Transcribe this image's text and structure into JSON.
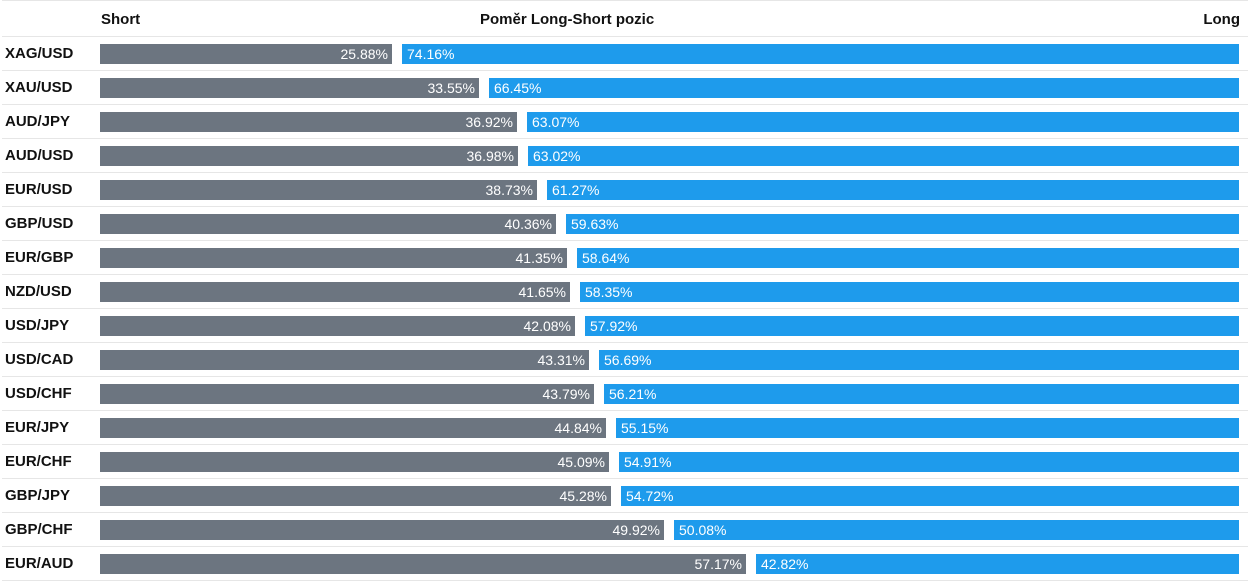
{
  "header": {
    "short_label": "Short",
    "title": "Poměr Long-Short pozic",
    "long_label": "Long"
  },
  "colors": {
    "short": "#6c7580",
    "long": "#1e9bec"
  },
  "chart_data": {
    "type": "bar",
    "title": "Poměr Long-Short pozic",
    "orientation": "horizontal-stacked",
    "categories": [
      "XAG/USD",
      "XAU/USD",
      "AUD/JPY",
      "AUD/USD",
      "EUR/USD",
      "GBP/USD",
      "EUR/GBP",
      "NZD/USD",
      "USD/JPY",
      "USD/CAD",
      "USD/CHF",
      "EUR/JPY",
      "EUR/CHF",
      "GBP/JPY",
      "GBP/CHF",
      "EUR/AUD"
    ],
    "series": [
      {
        "name": "Short",
        "values": [
          25.88,
          33.55,
          36.92,
          36.98,
          38.73,
          40.36,
          41.35,
          41.65,
          42.08,
          43.31,
          43.79,
          44.84,
          45.09,
          45.28,
          49.92,
          57.17
        ]
      },
      {
        "name": "Long",
        "values": [
          74.16,
          66.45,
          63.07,
          63.02,
          61.27,
          59.63,
          58.64,
          58.35,
          57.92,
          56.69,
          56.21,
          55.15,
          54.91,
          54.72,
          50.08,
          42.82
        ]
      }
    ],
    "labels": {
      "short": [
        "25.88%",
        "33.55%",
        "36.92%",
        "36.98%",
        "38.73%",
        "40.36%",
        "41.35%",
        "41.65%",
        "42.08%",
        "43.31%",
        "43.79%",
        "44.84%",
        "45.09%",
        "45.28%",
        "49.92%",
        "57.17%"
      ],
      "long": [
        "74.16%",
        "66.45%",
        "63.07%",
        "63.02%",
        "61.27%",
        "59.63%",
        "58.64%",
        "58.35%",
        "57.92%",
        "56.69%",
        "56.21%",
        "55.15%",
        "54.91%",
        "54.72%",
        "50.08%",
        "42.82%"
      ]
    },
    "xlim": [
      0,
      100
    ]
  }
}
